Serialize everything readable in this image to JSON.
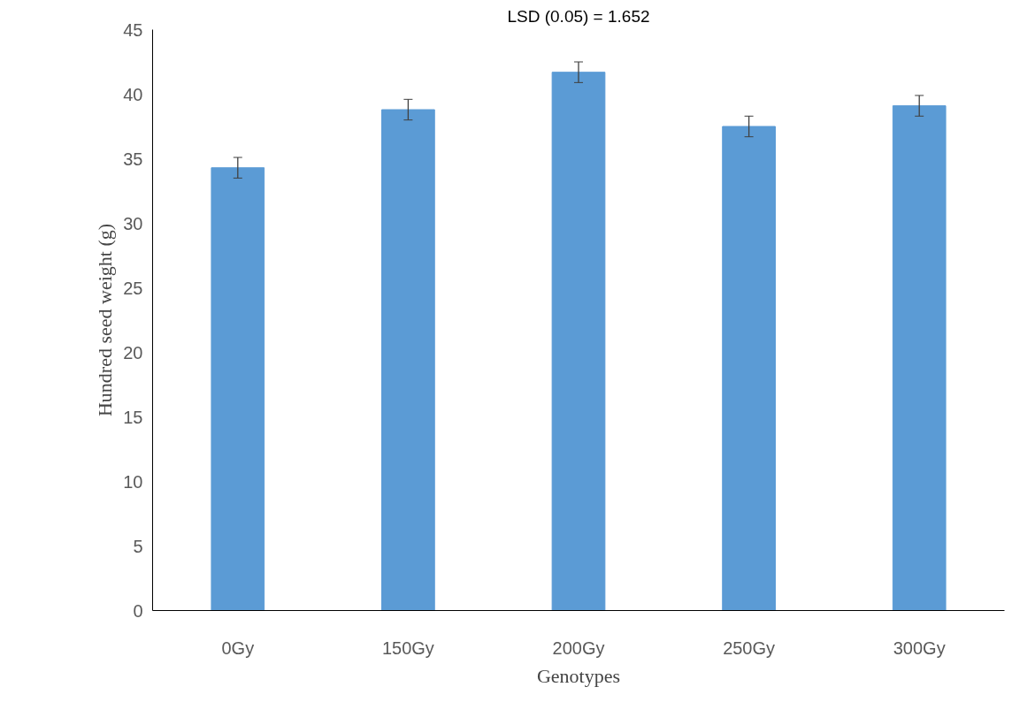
{
  "chart_data": {
    "type": "bar",
    "xlabel": "Genotypes",
    "ylabel": "Hundred seed weight (g)",
    "categories": [
      "0Gy",
      "150Gy",
      "200Gy",
      "250Gy",
      "300Gy"
    ],
    "values": [
      34.3,
      38.8,
      41.7,
      37.5,
      39.1
    ],
    "errors": [
      0.8,
      0.8,
      0.8,
      0.8,
      0.8
    ],
    "color": "#5b9bd5",
    "ylim": [
      0,
      45
    ],
    "yticks": [
      0,
      5,
      10,
      15,
      20,
      25,
      30,
      35,
      40,
      45
    ],
    "grid": false,
    "annotations": [
      "LSD (0.05) = 1.652"
    ]
  }
}
